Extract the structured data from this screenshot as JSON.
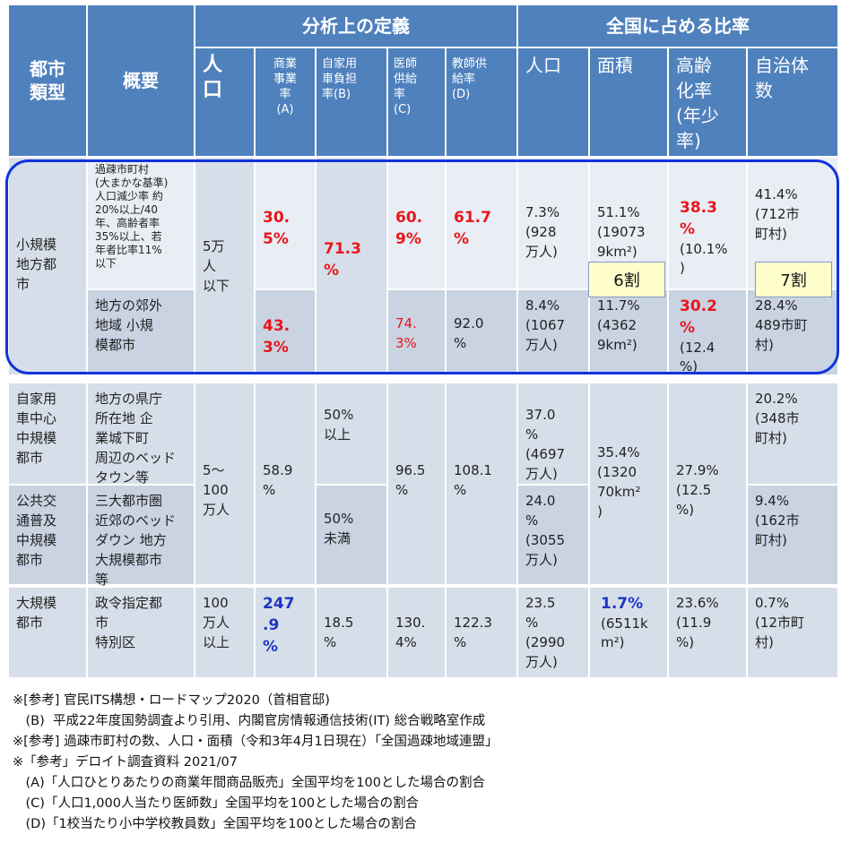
{
  "header": {
    "city_type": "都市\n類型",
    "overview": "概要",
    "group_def": "分析上の定義",
    "group_share": "全国に占める比率",
    "col_pop": "人\n口",
    "col_commerce": "商業\n事業\n率\n(A)",
    "col_car": "自家用\n車負担\n率(B)",
    "col_doctor": "医師\n供給\n率\n(C)",
    "col_teacher": "教師供\n給率\n(D)",
    "col_share_pop": "人口",
    "col_area": "面積",
    "col_aging": "高齢\n化率\n(年少\n率)",
    "col_munis": "自治体\n数"
  },
  "rows": {
    "small": {
      "type": "小規模\n地方都\n市",
      "sub1_overview": "過疎市町村\n(大まかな基準)\n人口減少率 約\n20%以上/40\n年、高齢者率\n35%以上、若\n年者比率11%\n以下",
      "sub2_overview": "地方の郊外\n地域 小規\n模都市",
      "pop": "5万\n人\n以下",
      "commerce1": "30.\n5%",
      "commerce2": "43.\n3%",
      "car": "71.3\n%",
      "doctor1": "60.\n9%",
      "doctor2": "74.\n3%",
      "teacher1": "61.7\n%",
      "teacher2": "92.0\n%",
      "share_pop1": "7.3%\n(928\n万人)",
      "share_pop2": "8.4%\n(1067\n万人)",
      "area1": "51.1%\n(19073\n9km²)",
      "area2": "11.7%\n(4362\n9km²)",
      "aging1_main": "38.3\n%",
      "aging1_sub": "(10.1%\n)",
      "aging2_main": "30.2\n%",
      "aging2_sub": "(12.4\n%)",
      "munis1": "41.4%\n(712市\n町村)",
      "munis2": "28.4%\n489市町\n村)",
      "badge_area": "6割",
      "badge_munis": "7割"
    },
    "mid_car": {
      "type": "自家用\n車中心\n中規模\n都市",
      "overview": "地方の県庁\n所在地 企\n業城下町\n周辺のベッド\nタウン等",
      "car": "50%\n以上",
      "share_pop": "37.0\n%\n(4697\n万人)",
      "munis": "20.2%\n(348市\n町村)"
    },
    "mid_shared": {
      "pop": "5～\n100\n万人",
      "commerce": "58.9\n%",
      "doctor": "96.5\n%",
      "teacher": "108.1\n%",
      "area": "35.4%\n(1320\n70km²\n)",
      "aging": "27.9%\n(12.5\n%)"
    },
    "mid_transit": {
      "type": "公共交\n通普及\n中規模\n都市",
      "overview": "三大都市圏\n近郊のベッド\nダウン 地方\n大規模都市\n等",
      "car": "50%\n未満",
      "share_pop": "24.0\n%\n(3055\n万人)",
      "munis": "9.4%\n(162市\n町村)"
    },
    "large": {
      "type": "大規模\n都市",
      "overview": "政令指定都\n市\n特別区",
      "pop": "100\n万人\n以上",
      "commerce": "247\n.9\n%",
      "car": "18.5\n%",
      "doctor": "130.\n4%",
      "teacher": "122.3\n%",
      "share_pop": "23.5\n%\n(2990\n万人)",
      "area_main": "1.7%",
      "area_sub": "(6511k\nm²)",
      "aging": "23.6%\n(11.9\n%)",
      "munis": "0.7%\n(12市町\n村)"
    }
  },
  "notes": [
    "※[参考] 官民ITS構想・ロードマップ2020（首相官邸)",
    "　(B)  平成22年度国勢調査より引用、内閣官房情報通信技術(IT) 総合戦略室作成",
    "※[参考] 過疎市町村の数、人口・面積（令和3年4月1日現在）「全国過疎地域連盟」",
    "※「参考」デロイト調査資料 2021/07",
    "　(A)「人口ひとりあたりの商業年間商品販売」全国平均を100とした場合の割合",
    "　(C)「人口1,000人当たり医師数」全国平均を100とした場合の割合",
    "　(D)「1校当たり小中学校教員数」全国平均を100とした場合の割合"
  ],
  "colors": {
    "header_blue": "#4f81bd",
    "ring_blue": "#1133dd",
    "highlight_red": "#e8161b",
    "highlight_blue": "#1f35c6",
    "badge_fill": "#ffffcc"
  }
}
